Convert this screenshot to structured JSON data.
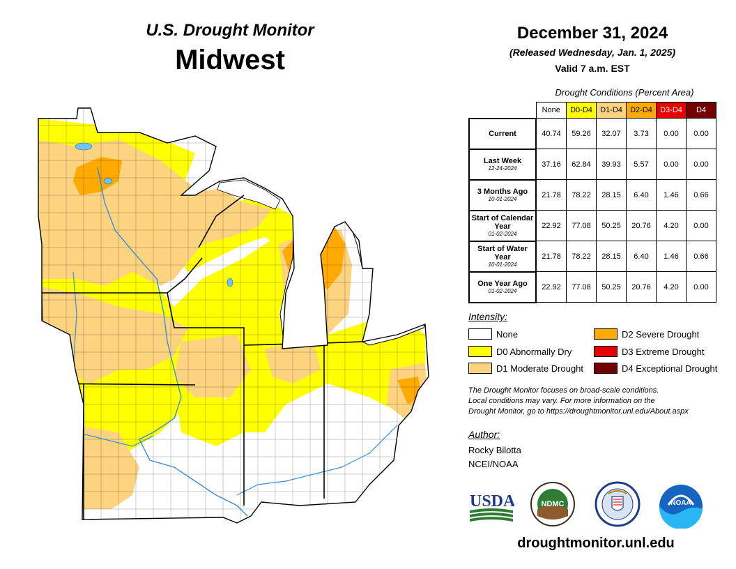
{
  "header": {
    "monitor_title": "U.S. Drought Monitor",
    "region": "Midwest",
    "date": "December 31, 2024",
    "released": "(Released Wednesday, Jan. 1, 2025)",
    "valid": "Valid 7 a.m. EST"
  },
  "table": {
    "title": "Drought Conditions (Percent Area)",
    "columns": [
      "None",
      "D0-D4",
      "D1-D4",
      "D2-D4",
      "D3-D4",
      "D4"
    ],
    "column_colors": [
      "#ffffff",
      "#ffff00",
      "#fcd37f",
      "#ffaa00",
      "#e60000",
      "#730000"
    ],
    "rows": [
      {
        "label": "Current",
        "date": "",
        "values": [
          "40.74",
          "59.26",
          "32.07",
          "3.73",
          "0.00",
          "0.00"
        ]
      },
      {
        "label": "Last Week",
        "date": "12-24-2024",
        "values": [
          "37.16",
          "62.84",
          "39.93",
          "5.57",
          "0.00",
          "0.00"
        ]
      },
      {
        "label": "3 Months Ago",
        "date": "10-01-2024",
        "values": [
          "21.78",
          "78.22",
          "28.15",
          "6.40",
          "1.46",
          "0.66"
        ]
      },
      {
        "label": "Start of Calendar Year",
        "date": "01-02-2024",
        "values": [
          "22.92",
          "77.08",
          "50.25",
          "20.76",
          "4.20",
          "0.00"
        ]
      },
      {
        "label": "Start of Water Year",
        "date": "10-01-2024",
        "values": [
          "21.78",
          "78.22",
          "28.15",
          "6.40",
          "1.46",
          "0.66"
        ]
      },
      {
        "label": "One Year Ago",
        "date": "01-02-2024",
        "values": [
          "22.92",
          "77.08",
          "50.25",
          "20.76",
          "4.20",
          "0.00"
        ]
      }
    ]
  },
  "legend": {
    "title": "Intensity:",
    "items": [
      {
        "label": "None",
        "color": "#ffffff"
      },
      {
        "label": "D0 Abnormally Dry",
        "color": "#ffff00"
      },
      {
        "label": "D1 Moderate Drought",
        "color": "#fcd37f"
      },
      {
        "label": "D2 Severe Drought",
        "color": "#ffaa00"
      },
      {
        "label": "D3 Extreme Drought",
        "color": "#e60000"
      },
      {
        "label": "D4 Exceptional Drought",
        "color": "#730000"
      }
    ]
  },
  "note": {
    "line1": "The Drought Monitor focuses on broad-scale conditions.",
    "line2": "Local conditions may vary. For more information on the",
    "line3": "Drought Monitor, go to https://droughtmonitor.unl.edu/About.aspx"
  },
  "author": {
    "title": "Author:",
    "name": "Rocky Bilotta",
    "org": "NCEI/NOAA"
  },
  "logos": {
    "usda": "USDA",
    "ndmc": "NDMC",
    "noaa": "NOAA"
  },
  "footer_url": "droughtmonitor.unl.edu",
  "map_colors": {
    "none": "#ffffff",
    "d0": "#ffff00",
    "d1": "#fcd37f",
    "d2": "#ffaa00",
    "water": "#6ec6f0",
    "border": "#000000"
  }
}
